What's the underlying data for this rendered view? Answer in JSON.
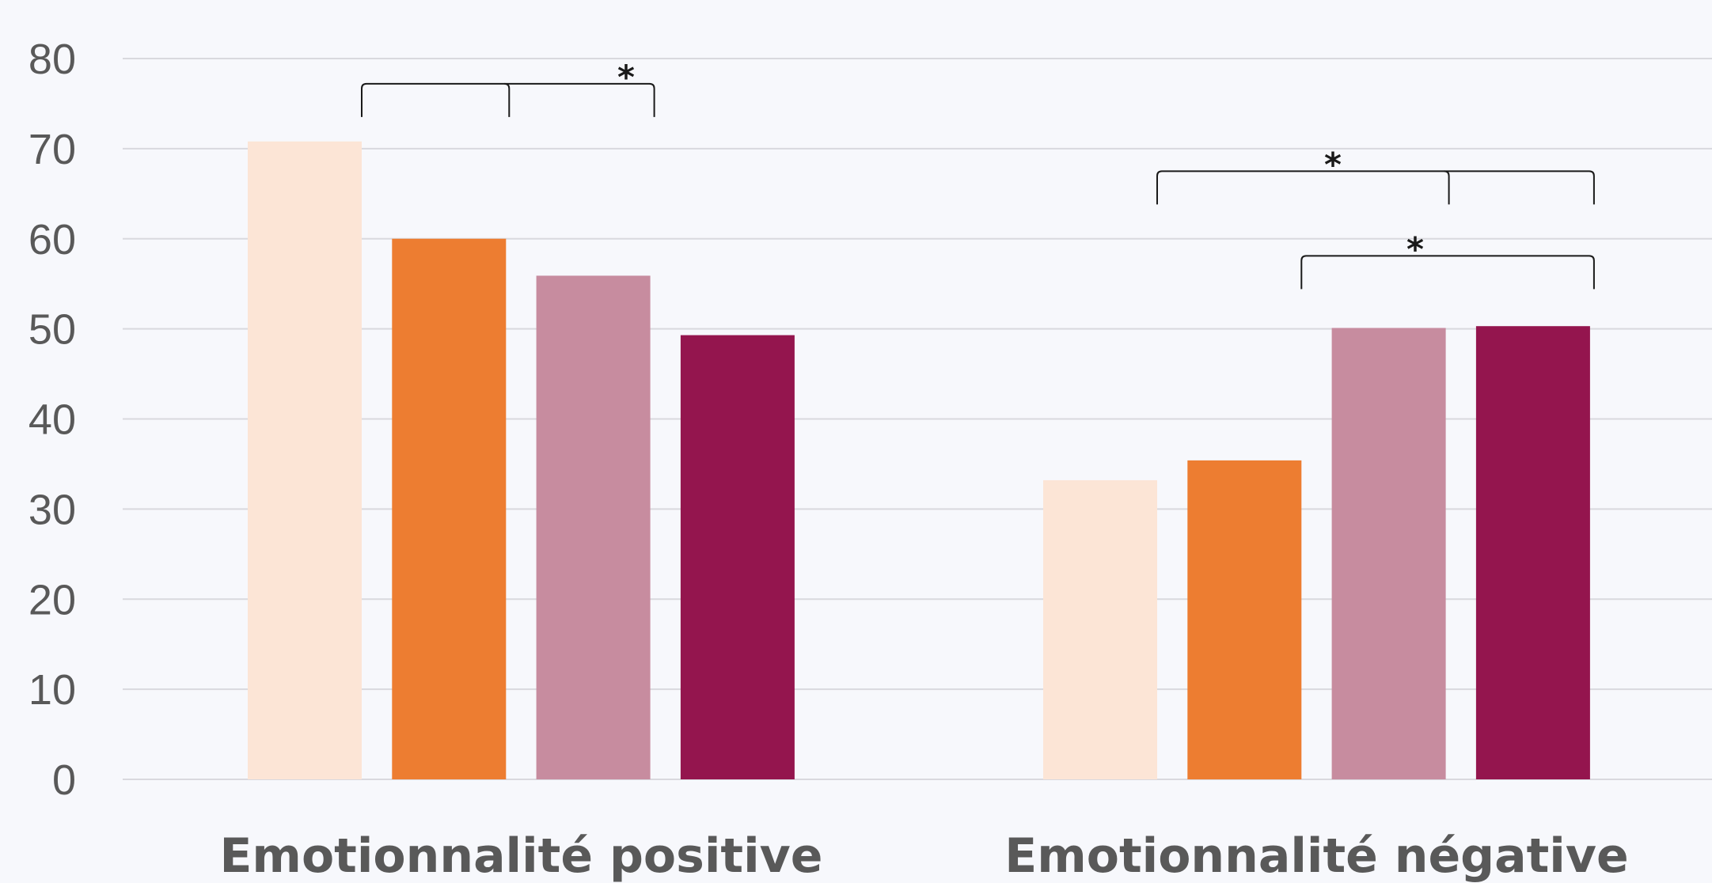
{
  "chart_data": {
    "type": "bar",
    "categories": [
      "Emotionnalité positive",
      "Emotionnalité négative"
    ],
    "series": [
      {
        "color": "#fce5d6",
        "values": [
          70.8,
          33.2
        ]
      },
      {
        "color": "#ed7d31",
        "values": [
          60.0,
          35.4
        ]
      },
      {
        "color": "#c78c9f",
        "values": [
          55.9,
          50.1
        ]
      },
      {
        "color": "#94154e",
        "values": [
          49.3,
          50.3
        ]
      }
    ],
    "yticks": [
      "0",
      "10",
      "20",
      "30",
      "40",
      "50",
      "60",
      "70",
      "80"
    ],
    "ylim": [
      0,
      80
    ],
    "grid": true,
    "significance_marks": [
      {
        "category": 0,
        "from_series": 0,
        "to_series": 2,
        "label": "*"
      },
      {
        "category": 1,
        "from_series": 0,
        "to_series": 3,
        "label": "*"
      },
      {
        "category": 1,
        "from_series": 1,
        "to_series": 3,
        "label": "*"
      }
    ]
  }
}
